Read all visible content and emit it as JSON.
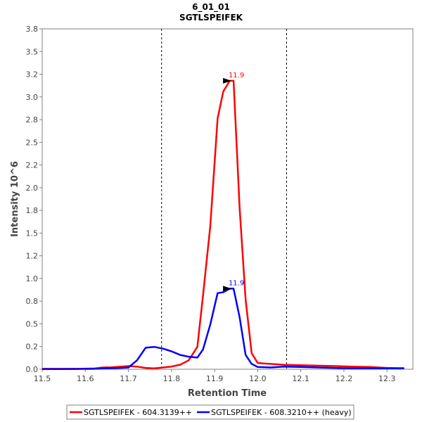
{
  "chart_data": {
    "type": "line",
    "title": "6_01_01",
    "subtitle": "SGTLSPEIFEK",
    "xlabel": "Retention Time",
    "ylabel": "Intensity 10^6",
    "xlim": [
      11.5,
      12.36
    ],
    "ylim": [
      0.0,
      3.8
    ],
    "x_ticks": [
      "11.5",
      "11.6",
      "11.7",
      "11.8",
      "11.9",
      "12.0",
      "12.1",
      "12.2",
      "12.3"
    ],
    "y_ticks": [
      "0.0",
      "0.2",
      "0.5",
      "0.8",
      "1.0",
      "1.2",
      "1.5",
      "1.8",
      "2.0",
      "2.2",
      "2.5",
      "2.8",
      "3.0",
      "3.2",
      "3.5",
      "3.8"
    ],
    "vertical_lines": [
      11.777,
      12.067
    ],
    "grid": false,
    "legend_position": "bottom",
    "series": [
      {
        "name": "SGTLSPEIFEK - 604.3139++",
        "color": "#ff0000",
        "peak_label": "11.9",
        "peak_x": 11.944,
        "peak_y": 3.22,
        "x": [
          11.5,
          11.54,
          11.58,
          11.6,
          11.62,
          11.64,
          11.66,
          11.68,
          11.7,
          11.72,
          11.74,
          11.76,
          11.78,
          11.8,
          11.82,
          11.84,
          11.86,
          11.873,
          11.89,
          11.907,
          11.92,
          11.935,
          11.944,
          11.958,
          11.972,
          11.986,
          12.0,
          12.03,
          12.06,
          12.1,
          12.14,
          12.18,
          12.22,
          12.26,
          12.3,
          12.34
        ],
        "y": [
          0.005,
          0.005,
          0.005,
          0.007,
          0.008,
          0.02,
          0.022,
          0.028,
          0.035,
          0.03,
          0.015,
          0.01,
          0.02,
          0.03,
          0.05,
          0.1,
          0.25,
          0.82,
          1.6,
          2.8,
          3.1,
          3.22,
          3.22,
          1.8,
          0.78,
          0.18,
          0.07,
          0.06,
          0.05,
          0.045,
          0.04,
          0.035,
          0.03,
          0.025,
          0.015,
          0.01
        ]
      },
      {
        "name": "SGTLSPEIFEK - 608.3210++ (heavy)",
        "color": "#0000ff",
        "peak_label": "11.9",
        "peak_x": 11.944,
        "peak_y": 0.9,
        "x": [
          11.5,
          11.54,
          11.58,
          11.6,
          11.62,
          11.64,
          11.66,
          11.68,
          11.7,
          11.72,
          11.74,
          11.76,
          11.78,
          11.8,
          11.82,
          11.84,
          11.86,
          11.873,
          11.89,
          11.907,
          11.92,
          11.935,
          11.944,
          11.958,
          11.972,
          11.986,
          12.0,
          12.03,
          12.06,
          12.1,
          12.14,
          12.18,
          12.22,
          12.26,
          12.3,
          12.34
        ],
        "y": [
          0.002,
          0.002,
          0.003,
          0.004,
          0.005,
          0.01,
          0.012,
          0.015,
          0.02,
          0.1,
          0.24,
          0.25,
          0.23,
          0.2,
          0.16,
          0.14,
          0.13,
          0.22,
          0.5,
          0.85,
          0.86,
          0.9,
          0.9,
          0.58,
          0.16,
          0.06,
          0.025,
          0.02,
          0.03,
          0.025,
          0.02,
          0.015,
          0.01,
          0.01,
          0.01,
          0.012
        ]
      }
    ]
  }
}
